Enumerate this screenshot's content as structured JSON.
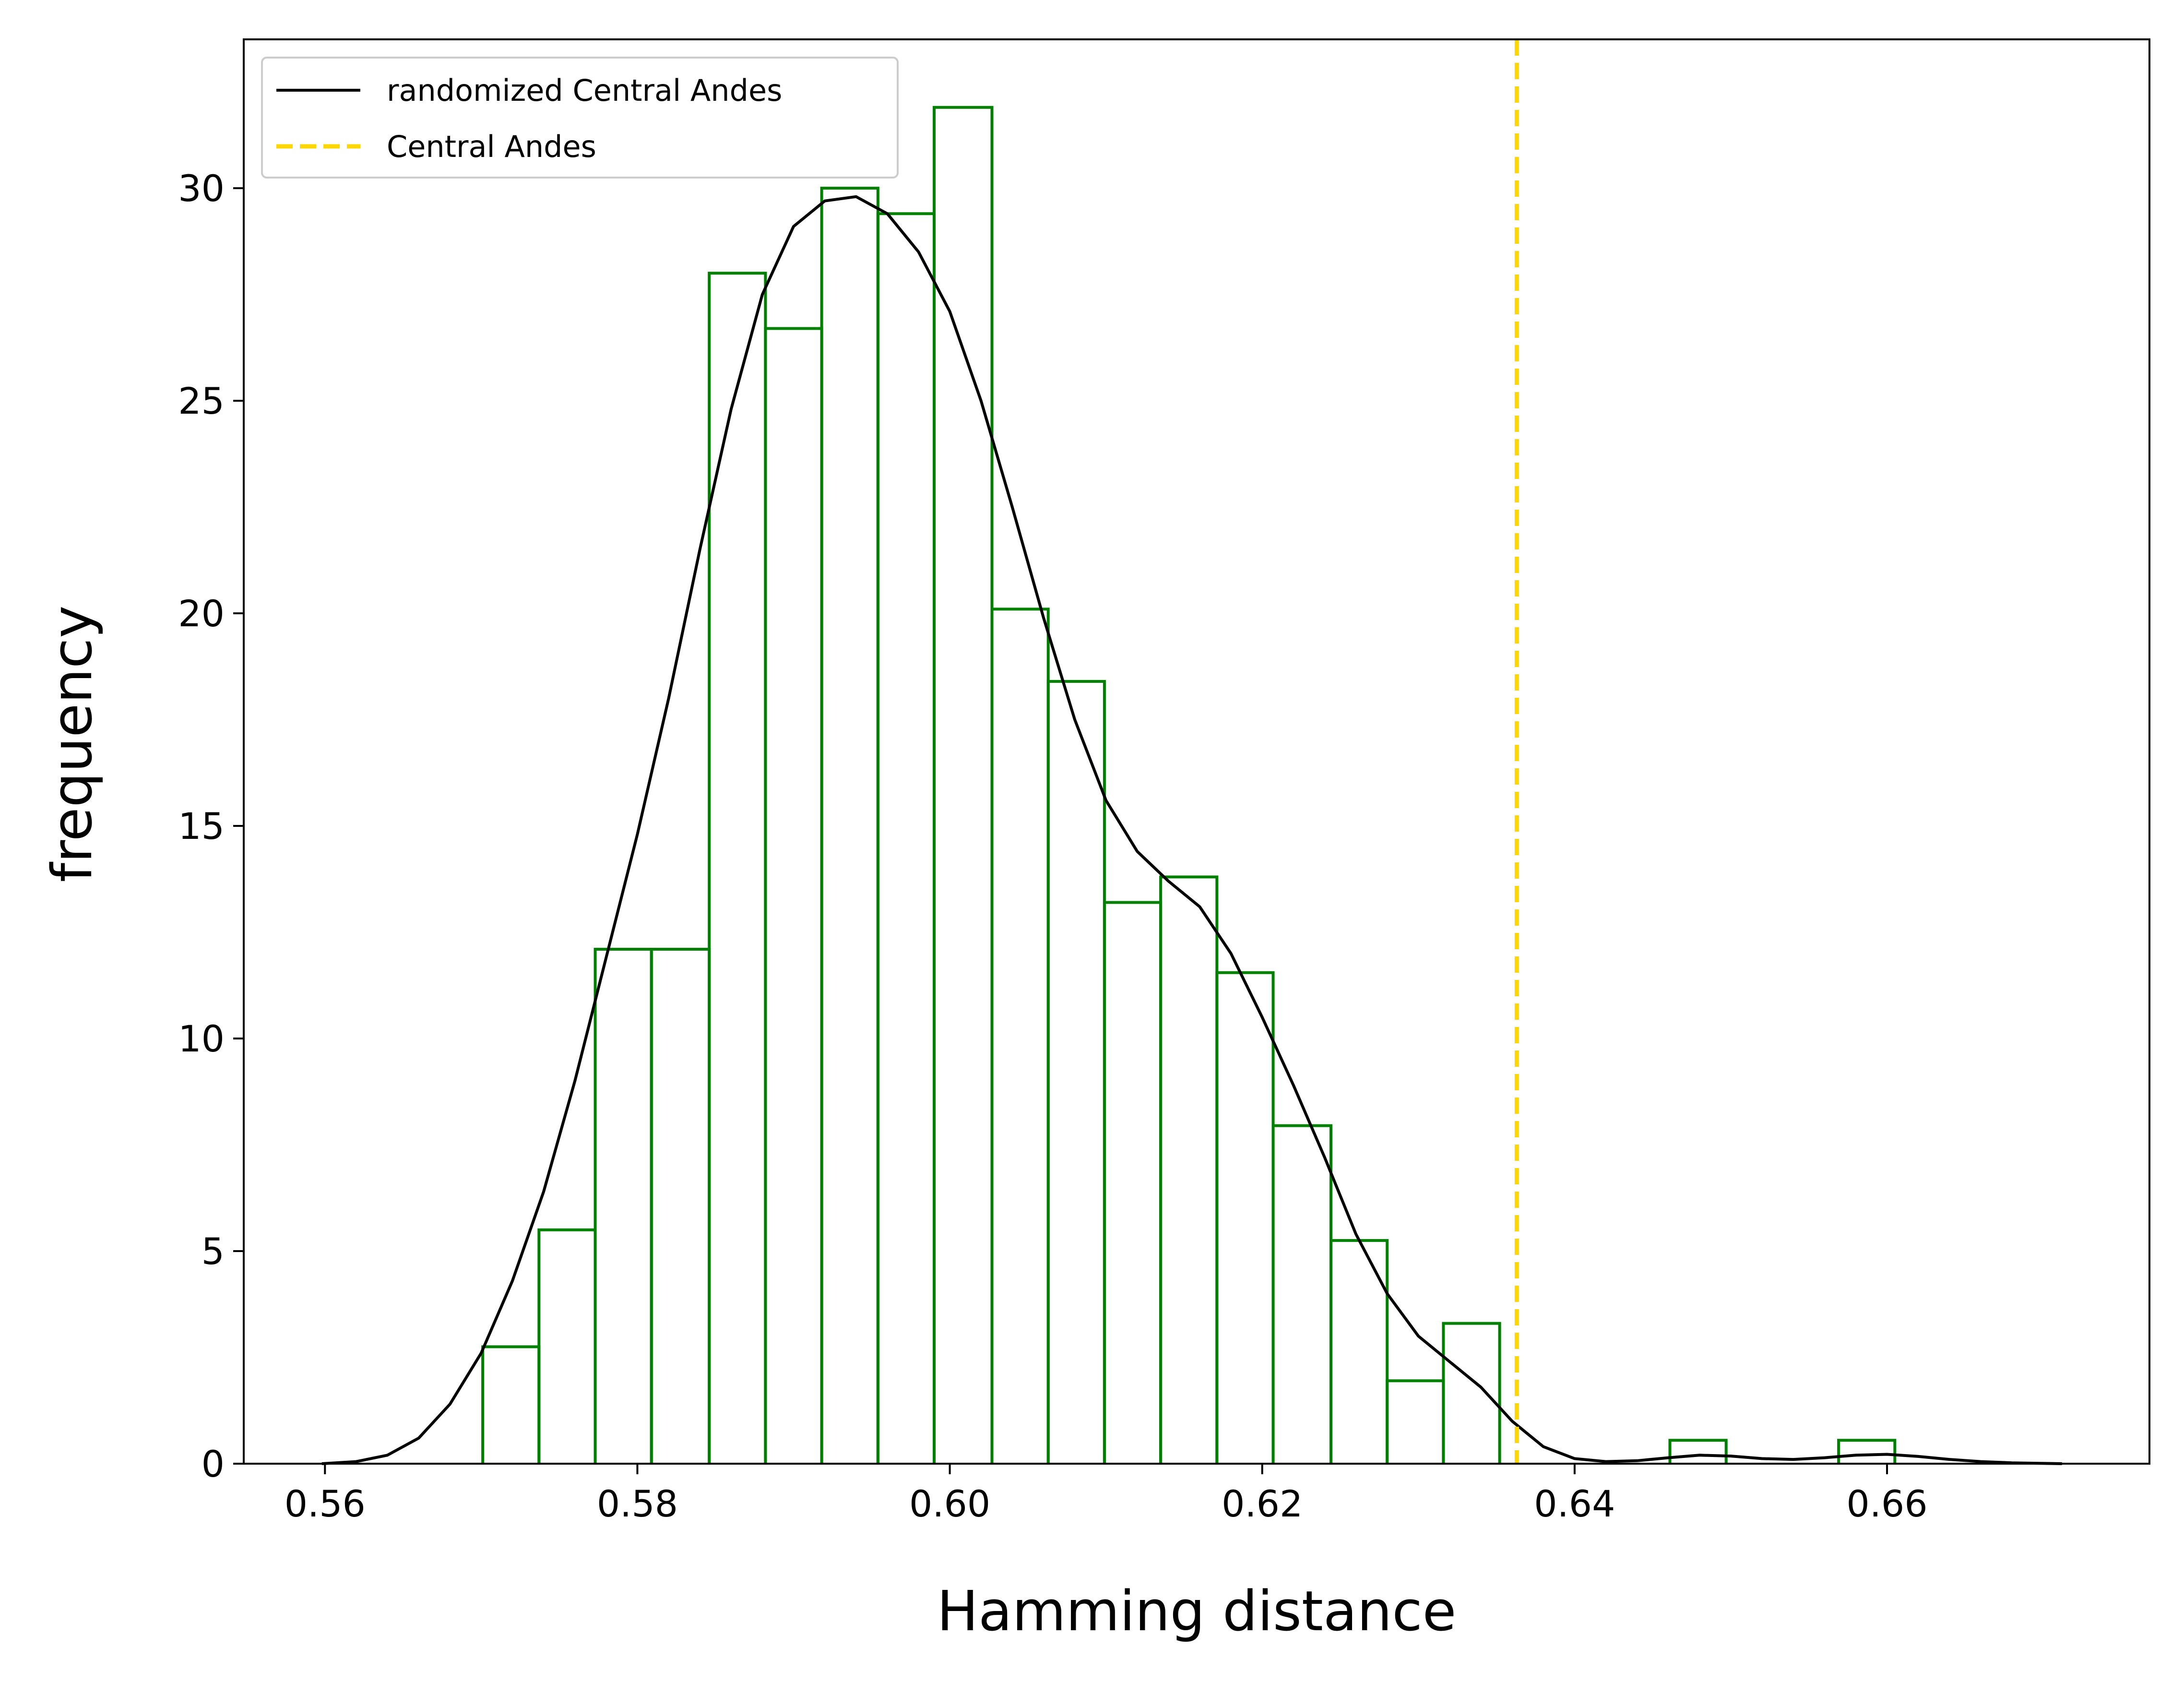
{
  "chart_data": {
    "type": "histogram",
    "xlabel": "Hamming distance",
    "ylabel": "frequency",
    "xlim": [
      0.5548,
      0.6768
    ],
    "ylim": [
      0,
      33.5
    ],
    "xticks": [
      0.56,
      0.58,
      0.6,
      0.62,
      0.64,
      0.66
    ],
    "xtick_labels": [
      "0.56",
      "0.58",
      "0.60",
      "0.62",
      "0.64",
      "0.66"
    ],
    "yticks": [
      0,
      5,
      10,
      15,
      20,
      25,
      30
    ],
    "ytick_labels": [
      "0",
      "5",
      "10",
      "15",
      "20",
      "25",
      "30"
    ],
    "grid": false,
    "legend_position": "top-left",
    "legend": [
      {
        "label": "randomized Central Andes",
        "style": "solid",
        "color": "#000000"
      },
      {
        "label": "Central Andes",
        "style": "dashed",
        "color": "#FFD700"
      }
    ],
    "histogram": {
      "color": "#008000",
      "bin_edges": [
        0.5701,
        0.5737,
        0.5773,
        0.5809,
        0.5846,
        0.5882,
        0.5918,
        0.5954,
        0.599,
        0.6027,
        0.6063,
        0.6099,
        0.6135,
        0.6171,
        0.6207,
        0.6244,
        0.628,
        0.6316,
        0.6352,
        0.6388,
        0.6424,
        0.6461,
        0.6497,
        0.6533,
        0.6569,
        0.6605
      ],
      "values": [
        2.75,
        5.5,
        12.1,
        12.1,
        28.0,
        26.7,
        30.0,
        29.4,
        31.9,
        20.1,
        18.4,
        13.2,
        13.8,
        11.55,
        7.95,
        5.25,
        1.95,
        3.3,
        0,
        0,
        0,
        0.55,
        0,
        0,
        0.55
      ]
    },
    "kde": {
      "name": "randomized Central Andes",
      "color": "#000000",
      "x": [
        0.5598,
        0.562,
        0.564,
        0.566,
        0.568,
        0.57,
        0.572,
        0.574,
        0.576,
        0.578,
        0.58,
        0.582,
        0.584,
        0.586,
        0.588,
        0.59,
        0.592,
        0.594,
        0.596,
        0.598,
        0.6,
        0.602,
        0.604,
        0.606,
        0.608,
        0.61,
        0.612,
        0.614,
        0.616,
        0.618,
        0.62,
        0.622,
        0.624,
        0.626,
        0.628,
        0.63,
        0.632,
        0.634,
        0.636,
        0.638,
        0.64,
        0.642,
        0.644,
        0.646,
        0.648,
        0.65,
        0.652,
        0.654,
        0.656,
        0.658,
        0.66,
        0.662,
        0.664,
        0.666,
        0.668,
        0.6712
      ],
      "y": [
        0.0,
        0.05,
        0.2,
        0.6,
        1.4,
        2.6,
        4.3,
        6.4,
        9.0,
        11.9,
        14.8,
        18.0,
        21.5,
        24.8,
        27.5,
        29.1,
        29.7,
        29.8,
        29.4,
        28.5,
        27.1,
        25.0,
        22.5,
        19.9,
        17.5,
        15.6,
        14.4,
        13.7,
        13.1,
        12.0,
        10.5,
        8.9,
        7.2,
        5.4,
        4.0,
        3.0,
        2.4,
        1.8,
        1.0,
        0.4,
        0.12,
        0.05,
        0.07,
        0.14,
        0.2,
        0.18,
        0.12,
        0.1,
        0.14,
        0.2,
        0.22,
        0.17,
        0.1,
        0.05,
        0.02,
        0.0
      ]
    },
    "reference_line": {
      "name": "Central Andes",
      "x": 0.6363,
      "color": "#FFD700",
      "style": "dashed"
    }
  }
}
